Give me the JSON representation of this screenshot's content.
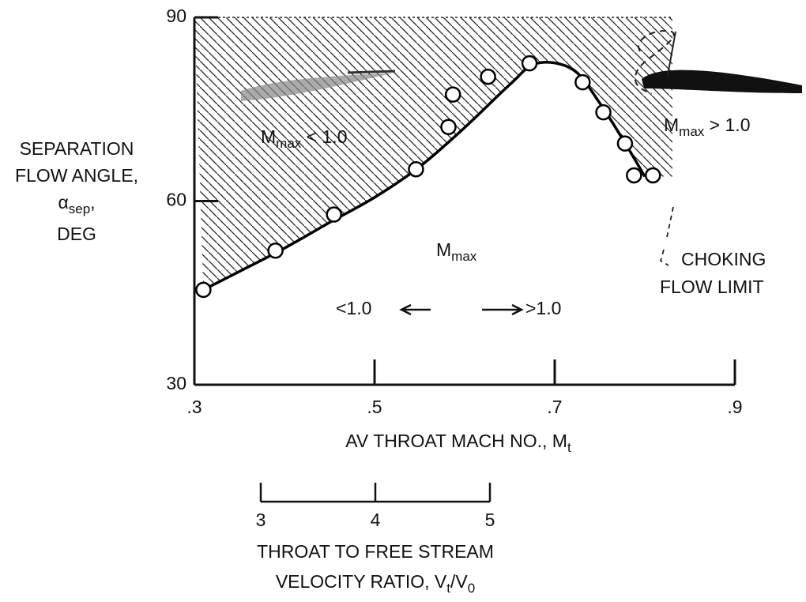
{
  "chart_data": {
    "type": "scatter",
    "ylabel": {
      "lines": [
        "SEPARATION",
        "FLOW ANGLE,"
      ],
      "symbol": {
        "main": "α",
        "sub": "sep",
        "rest": ","
      },
      "last": "DEG"
    },
    "xlabel": {
      "main": "AV THROAT MACH NO., M",
      "sub": "t"
    },
    "x2label": {
      "line1": "THROAT TO FREE STREAM",
      "main": "VELOCITY RATIO, V",
      "sub": "t",
      "mid": "/V",
      "sub2": "0"
    },
    "xlim": [
      0.3,
      0.9
    ],
    "xticks": [
      {
        "value": 0.3,
        "label": ".3"
      },
      {
        "value": 0.5,
        "label": ".5"
      },
      {
        "value": 0.7,
        "label": ".7"
      },
      {
        "value": 0.9,
        "label": ".9"
      }
    ],
    "ylim": [
      30,
      90
    ],
    "yticks": [
      30,
      60,
      90
    ],
    "x2lim": [
      3,
      5
    ],
    "x2ticks": [
      3,
      4,
      5
    ],
    "series": [
      {
        "marker": "circle",
        "color": "#000000",
        "x": [
          0.31,
          0.39,
          0.455,
          0.546,
          0.582,
          0.587,
          0.626,
          0.672,
          0.731,
          0.754,
          0.778,
          0.788,
          0.809
        ],
        "values": [
          45.5,
          51.9,
          57.8,
          65.2,
          72.1,
          77.4,
          80.3,
          82.5,
          79.4,
          74.5,
          69.4,
          64.2,
          64.2
        ]
      },
      {
        "marker": "none",
        "color": "#000000",
        "x": [
          0.31,
          0.35,
          0.4,
          0.45,
          0.5,
          0.55,
          0.6,
          0.65,
          0.68,
          0.72,
          0.75,
          0.78,
          0.8
        ],
        "values": [
          45.5,
          48.5,
          52.3,
          56.5,
          60.6,
          65.6,
          72,
          79,
          82.5,
          81.5,
          76,
          69,
          64
        ]
      }
    ],
    "annotations": [
      {
        "main": "M",
        "sub": "max",
        "rest": " < 1.0"
      },
      {
        "main": "M",
        "sub": "max",
        "rest": " > 1.0"
      },
      {
        "main": "M",
        "sub": "max"
      },
      {
        "text": "<1.0"
      },
      {
        "text": ">1.0"
      },
      {
        "text": "CHOKING"
      },
      {
        "text": "FLOW LIMIT"
      }
    ]
  }
}
